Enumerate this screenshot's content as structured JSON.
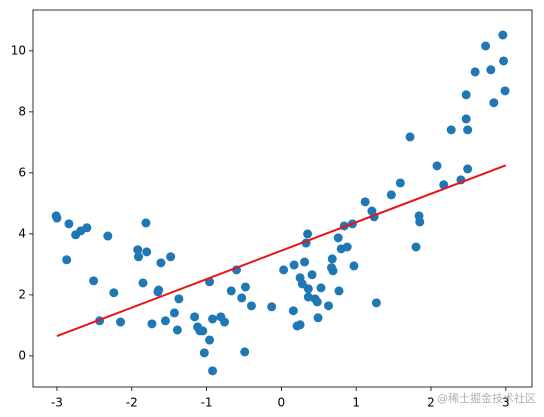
{
  "chart_data": {
    "type": "scatter",
    "points": {
      "color": "#1f77b4",
      "x": [
        -3.01,
        -3.0,
        -2.87,
        -2.84,
        -2.75,
        -2.68,
        -2.6,
        -2.51,
        -2.43,
        -2.32,
        -2.24,
        -2.15,
        -1.92,
        -1.91,
        -1.85,
        -1.81,
        -1.8,
        -1.73,
        -1.65,
        -1.64,
        -1.61,
        -1.55,
        -1.48,
        -1.43,
        -1.39,
        -1.37,
        -1.16,
        -1.12,
        -1.09,
        -1.05,
        -1.03,
        -0.96,
        -0.96,
        -0.92,
        -0.92,
        -0.81,
        -0.76,
        -0.67,
        -0.6,
        -0.53,
        -0.49,
        -0.48,
        -0.4,
        -0.13,
        0.03,
        0.16,
        0.17,
        0.21,
        0.25,
        0.25,
        0.28,
        0.31,
        0.33,
        0.35,
        0.36,
        0.36,
        0.41,
        0.45,
        0.48,
        0.49,
        0.53,
        0.63,
        0.67,
        0.68,
        0.69,
        0.76,
        0.77,
        0.8,
        0.84,
        0.88,
        0.95,
        0.97,
        1.12,
        1.21,
        1.24,
        1.27,
        1.47,
        1.59,
        1.72,
        1.8,
        1.84,
        1.85,
        2.08,
        2.17,
        2.27,
        2.4,
        2.47,
        2.47,
        2.49,
        2.49,
        2.59,
        2.73,
        2.8,
        2.84,
        2.96,
        2.97,
        2.99
      ],
      "y": [
        4.59,
        4.52,
        3.15,
        4.33,
        3.97,
        4.1,
        4.2,
        2.46,
        1.15,
        3.93,
        2.07,
        1.11,
        3.48,
        3.25,
        2.39,
        4.36,
        3.41,
        1.05,
        2.1,
        2.16,
        3.05,
        1.15,
        3.25,
        1.41,
        0.85,
        1.87,
        1.28,
        0.95,
        0.82,
        0.82,
        0.1,
        2.43,
        0.52,
        -0.49,
        1.21,
        1.28,
        1.11,
        2.13,
        2.82,
        1.9,
        0.13,
        2.26,
        1.64,
        1.61,
        2.82,
        1.48,
        2.98,
        0.98,
        1.02,
        2.56,
        2.36,
        3.08,
        3.7,
        4.0,
        2.2,
        1.93,
        2.66,
        1.87,
        1.77,
        1.25,
        2.23,
        1.64,
        2.89,
        3.18,
        2.79,
        3.87,
        2.13,
        3.51,
        4.26,
        3.57,
        4.33,
        2.95,
        5.05,
        4.75,
        4.56,
        1.74,
        5.28,
        5.67,
        7.18,
        3.57,
        4.59,
        4.39,
        6.23,
        5.61,
        7.41,
        5.77,
        7.77,
        8.56,
        6.13,
        7.41,
        9.31,
        10.16,
        9.38,
        8.3,
        10.52,
        9.67,
        8.69
      ]
    },
    "line": {
      "color": "#e8161b",
      "x": [
        -3,
        3
      ],
      "y": [
        0.65,
        6.25
      ]
    },
    "xlim": [
      -3.32,
      3.35
    ],
    "xticks": [
      -3,
      -2,
      -1,
      0,
      1,
      2,
      3
    ],
    "ylim": [
      -1.02,
      11.34
    ],
    "yticks": [
      0,
      2,
      4,
      6,
      8,
      10
    ]
  },
  "watermark": "@稀土掘金技术社区"
}
